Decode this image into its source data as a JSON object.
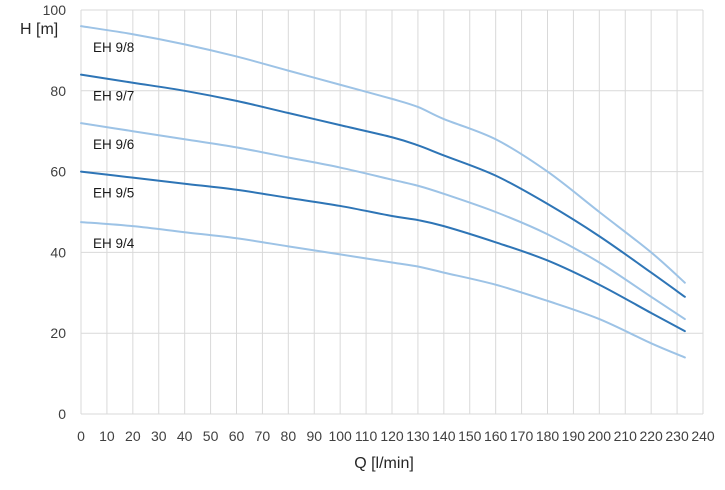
{
  "chart_data": {
    "type": "line",
    "title": "",
    "xlabel": "Q [l/min]",
    "ylabel": "H [m]",
    "xlim": [
      0,
      240
    ],
    "ylim": [
      0,
      100
    ],
    "grid": true,
    "legend": "inline labels on left",
    "x_ticks": [
      0,
      10,
      20,
      30,
      40,
      50,
      60,
      70,
      80,
      90,
      100,
      110,
      120,
      130,
      140,
      150,
      160,
      170,
      180,
      190,
      200,
      210,
      220,
      230,
      240
    ],
    "y_ticks": [
      0,
      20,
      40,
      60,
      80,
      100
    ],
    "series": [
      {
        "name": "EH 9/8",
        "color": "#9dc3e6",
        "points": [
          [
            0,
            96
          ],
          [
            20,
            94
          ],
          [
            40,
            91.5
          ],
          [
            60,
            88.5
          ],
          [
            80,
            85
          ],
          [
            100,
            81.5
          ],
          [
            120,
            78
          ],
          [
            130,
            76
          ],
          [
            140,
            73
          ],
          [
            160,
            68
          ],
          [
            180,
            60
          ],
          [
            200,
            50
          ],
          [
            220,
            40
          ],
          [
            233,
            32.5
          ]
        ]
      },
      {
        "name": "EH 9/7",
        "color": "#2e75b6",
        "points": [
          [
            0,
            84
          ],
          [
            20,
            82
          ],
          [
            40,
            80
          ],
          [
            60,
            77.5
          ],
          [
            80,
            74.5
          ],
          [
            100,
            71.5
          ],
          [
            120,
            68.5
          ],
          [
            130,
            66.5
          ],
          [
            140,
            64
          ],
          [
            160,
            59
          ],
          [
            180,
            52
          ],
          [
            200,
            44
          ],
          [
            220,
            35
          ],
          [
            233,
            29
          ]
        ]
      },
      {
        "name": "EH 9/6",
        "color": "#9dc3e6",
        "points": [
          [
            0,
            72
          ],
          [
            20,
            70
          ],
          [
            40,
            68
          ],
          [
            60,
            66
          ],
          [
            80,
            63.5
          ],
          [
            100,
            61
          ],
          [
            120,
            58
          ],
          [
            130,
            56.5
          ],
          [
            140,
            54.5
          ],
          [
            160,
            50
          ],
          [
            180,
            44.5
          ],
          [
            200,
            37.5
          ],
          [
            220,
            29
          ],
          [
            233,
            23.5
          ]
        ]
      },
      {
        "name": "EH 9/5",
        "color": "#2e75b6",
        "points": [
          [
            0,
            60
          ],
          [
            20,
            58.5
          ],
          [
            40,
            57
          ],
          [
            60,
            55.5
          ],
          [
            80,
            53.5
          ],
          [
            100,
            51.5
          ],
          [
            120,
            49
          ],
          [
            130,
            48
          ],
          [
            140,
            46.5
          ],
          [
            160,
            42.5
          ],
          [
            180,
            38
          ],
          [
            200,
            32
          ],
          [
            220,
            25
          ],
          [
            233,
            20.5
          ]
        ]
      },
      {
        "name": "EH 9/4",
        "color": "#9dc3e6",
        "points": [
          [
            0,
            47.5
          ],
          [
            20,
            46.5
          ],
          [
            40,
            45
          ],
          [
            60,
            43.5
          ],
          [
            80,
            41.5
          ],
          [
            100,
            39.5
          ],
          [
            120,
            37.5
          ],
          [
            130,
            36.5
          ],
          [
            140,
            35
          ],
          [
            160,
            32
          ],
          [
            180,
            28
          ],
          [
            200,
            23.5
          ],
          [
            220,
            17.5
          ],
          [
            233,
            14
          ]
        ]
      }
    ]
  }
}
